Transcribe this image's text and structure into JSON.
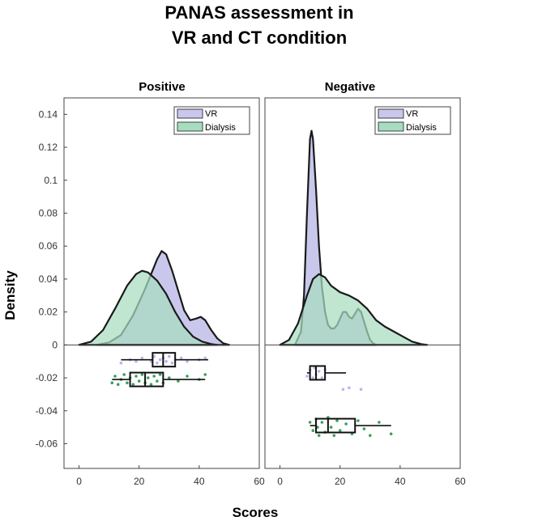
{
  "figure": {
    "title_lines": [
      "PANAS assessment in",
      "VR and CT condition"
    ],
    "ylabel": "Density",
    "xlabel": "Scores"
  },
  "colors": {
    "vr_fill": "#c9c8ec",
    "vr_edge": "#3a3a4a",
    "dialysis_fill": "#a8dcc0",
    "dialysis_edge": "#2f4a3a",
    "vr_points": "#b8b6f0",
    "dialysis_points": "#3aa05c",
    "box": "#111111"
  },
  "chart_data": [
    {
      "type": "density_with_boxplot",
      "title": "Positive",
      "xlabel": "Scores",
      "ylabel": "Density",
      "xlim": [
        -5,
        60
      ],
      "ylim": [
        -0.075,
        0.15
      ],
      "xticks": [
        0,
        20,
        40,
        60
      ],
      "xtick_labels": [
        "0",
        "20",
        "40",
        "60"
      ],
      "yticks": [
        0.14,
        0.12,
        0.1,
        0.08,
        0.06,
        0.04,
        0.02,
        0,
        -0.02,
        -0.04,
        -0.06
      ],
      "ytick_labels": [
        "0.14",
        "0.12",
        "0.1",
        "0.08",
        "0.06",
        "0.04",
        "0.02",
        "0",
        "-0.02",
        "-0.04",
        "-0.06"
      ],
      "legend": [
        "VR",
        "Dialysis"
      ],
      "legend_position": "top-right",
      "density_series": [
        {
          "name": "VR",
          "x": [
            6,
            10,
            14,
            18,
            20,
            22,
            24,
            26,
            27.5,
            29,
            31,
            33,
            35,
            37,
            39,
            40.5,
            42,
            44,
            46,
            48,
            50
          ],
          "y": [
            0,
            0.0015,
            0.006,
            0.018,
            0.026,
            0.034,
            0.043,
            0.052,
            0.057,
            0.055,
            0.045,
            0.033,
            0.021,
            0.015,
            0.016,
            0.017,
            0.015,
            0.009,
            0.004,
            0.001,
            0
          ]
        },
        {
          "name": "Dialysis",
          "x": [
            0,
            4,
            8,
            12,
            16,
            19,
            21,
            23,
            26,
            29,
            32,
            35,
            38,
            41,
            44,
            46
          ],
          "y": [
            0,
            0.002,
            0.009,
            0.022,
            0.036,
            0.043,
            0.045,
            0.044,
            0.039,
            0.031,
            0.02,
            0.011,
            0.005,
            0.002,
            0.0005,
            0
          ]
        }
      ],
      "boxplots": [
        {
          "name": "VR",
          "position": -0.009,
          "whisker_low": 14,
          "q1": 24.5,
          "median": 28,
          "q3": 32,
          "whisker_high": 43
        },
        {
          "name": "Dialysis",
          "position": -0.021,
          "whisker_low": 11,
          "q1": 17,
          "median": 22,
          "q3": 28,
          "whisker_high": 42
        }
      ],
      "scatter": [
        {
          "name": "VR",
          "points": [
            [
              14,
              -0.011
            ],
            [
              17,
              -0.009
            ],
            [
              19,
              -0.01
            ],
            [
              21,
              -0.008
            ],
            [
              24,
              -0.01
            ],
            [
              25,
              -0.007
            ],
            [
              26,
              -0.011
            ],
            [
              27,
              -0.009
            ],
            [
              28,
              -0.008
            ],
            [
              29,
              -0.01
            ],
            [
              30,
              -0.007
            ],
            [
              31,
              -0.011
            ],
            [
              32,
              -0.009
            ],
            [
              34,
              -0.008
            ],
            [
              36,
              -0.01
            ],
            [
              40,
              -0.009
            ],
            [
              42,
              -0.008
            ]
          ]
        },
        {
          "name": "Dialysis",
          "points": [
            [
              11,
              -0.023
            ],
            [
              12,
              -0.019
            ],
            [
              13,
              -0.024
            ],
            [
              14,
              -0.021
            ],
            [
              15,
              -0.018
            ],
            [
              16,
              -0.023
            ],
            [
              17,
              -0.02
            ],
            [
              18,
              -0.024
            ],
            [
              19,
              -0.019
            ],
            [
              20,
              -0.022
            ],
            [
              21,
              -0.018
            ],
            [
              22,
              -0.023
            ],
            [
              23,
              -0.02
            ],
            [
              24,
              -0.024
            ],
            [
              25,
              -0.019
            ],
            [
              26,
              -0.022
            ],
            [
              27,
              -0.018
            ],
            [
              28,
              -0.023
            ],
            [
              30,
              -0.02
            ],
            [
              33,
              -0.022
            ],
            [
              36,
              -0.019
            ],
            [
              40,
              -0.021
            ],
            [
              42,
              -0.018
            ]
          ]
        }
      ]
    },
    {
      "type": "density_with_boxplot",
      "title": "Negative",
      "xlabel": "Scores",
      "ylabel": "Density",
      "xlim": [
        -5,
        60
      ],
      "ylim": [
        -0.075,
        0.15
      ],
      "xticks": [
        0,
        20,
        40,
        60
      ],
      "xtick_labels": [
        "0",
        "20",
        "40",
        "60"
      ],
      "legend": [
        "VR",
        "Dialysis"
      ],
      "legend_position": "top-right",
      "density_series": [
        {
          "name": "VR",
          "x": [
            5,
            7,
            8,
            9,
            10,
            10.5,
            11,
            12,
            13,
            14,
            15,
            16,
            17,
            18,
            19,
            20,
            21,
            22,
            23,
            24,
            25,
            26,
            27,
            28,
            29,
            30,
            31,
            32
          ],
          "y": [
            0,
            0.008,
            0.03,
            0.08,
            0.125,
            0.13,
            0.125,
            0.095,
            0.06,
            0.035,
            0.02,
            0.012,
            0.01,
            0.01,
            0.012,
            0.016,
            0.02,
            0.02,
            0.017,
            0.016,
            0.019,
            0.022,
            0.02,
            0.014,
            0.008,
            0.003,
            0.001,
            0
          ]
        },
        {
          "name": "Dialysis",
          "x": [
            0,
            3,
            6,
            9,
            11,
            13,
            15,
            17,
            20,
            23,
            26,
            29,
            32,
            35,
            38,
            41,
            44,
            47,
            49
          ],
          "y": [
            0,
            0.003,
            0.013,
            0.03,
            0.04,
            0.043,
            0.041,
            0.036,
            0.032,
            0.03,
            0.027,
            0.022,
            0.015,
            0.011,
            0.008,
            0.005,
            0.002,
            0.0005,
            0
          ]
        }
      ],
      "boxplots": [
        {
          "name": "VR",
          "position": -0.017,
          "whisker_low": 9,
          "q1": 10,
          "median": 12,
          "q3": 15,
          "whisker_high": 22
        },
        {
          "name": "Dialysis",
          "position": -0.049,
          "whisker_low": 10,
          "q1": 12,
          "median": 16,
          "q3": 25,
          "whisker_high": 37
        }
      ],
      "scatter": [
        {
          "name": "VR",
          "points": [
            [
              9,
              -0.019
            ],
            [
              10,
              -0.015
            ],
            [
              11,
              -0.02
            ],
            [
              11.5,
              -0.014
            ],
            [
              12,
              -0.018
            ],
            [
              13,
              -0.016
            ],
            [
              14,
              -0.02
            ],
            [
              15,
              -0.015
            ],
            [
              21,
              -0.027
            ],
            [
              23,
              -0.026
            ],
            [
              27,
              -0.027
            ]
          ]
        },
        {
          "name": "Dialysis",
          "points": [
            [
              10,
              -0.047
            ],
            [
              11,
              -0.052
            ],
            [
              12,
              -0.045
            ],
            [
              12.5,
              -0.05
            ],
            [
              13,
              -0.055
            ],
            [
              14,
              -0.047
            ],
            [
              15,
              -0.053
            ],
            [
              16,
              -0.044
            ],
            [
              17,
              -0.05
            ],
            [
              18,
              -0.055
            ],
            [
              19,
              -0.046
            ],
            [
              20,
              -0.052
            ],
            [
              22,
              -0.048
            ],
            [
              24,
              -0.054
            ],
            [
              26,
              -0.046
            ],
            [
              28,
              -0.051
            ],
            [
              30,
              -0.055
            ],
            [
              33,
              -0.047
            ],
            [
              37,
              -0.054
            ]
          ]
        }
      ]
    }
  ]
}
